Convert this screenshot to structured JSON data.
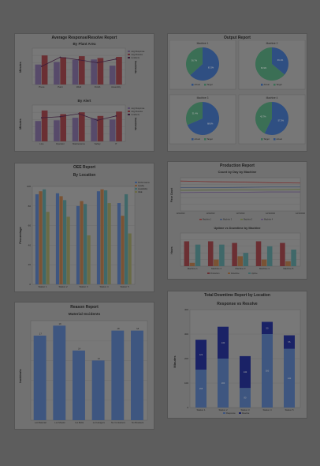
{
  "panels": {
    "avg_response": {
      "title": "Average Response/Resolve Report"
    },
    "output": {
      "title": "Output Report"
    },
    "oee": {
      "title": "OEE Report"
    },
    "production": {
      "title": "Production Report"
    },
    "reason": {
      "title": "Reason Report"
    },
    "downtime": {
      "title": "Total Downtime Report by Location"
    }
  },
  "colors": {
    "blue": "#3e4f6e",
    "maroon": "#6b2f33",
    "olive": "#5a6234",
    "purple": "#574a6a",
    "teal": "#3f6869",
    "orange": "#7a5334",
    "pie_blue": "#2f4f82",
    "pie_green": "#3b6f55",
    "navy": "#1a2266",
    "steel": "#3e5680"
  },
  "chart_data": [
    {
      "id": "by_plant_area",
      "type": "bar",
      "title": "By Plant Area",
      "categories": [
        "Press",
        "Paint",
        "Weld",
        "Finish",
        "Assembly"
      ],
      "ylabel": "Minutes",
      "y2label": "Incidents",
      "series": [
        {
          "name": "Avg Response",
          "values": [
            5.5,
            6.2,
            6.8,
            6.9,
            5.2
          ]
        },
        {
          "name": "Avg Resolve",
          "values": [
            8.0,
            7.5,
            7.8,
            7.3,
            7.6
          ]
        },
        {
          "name": "Incidents",
          "values": [
            5.0,
            7.5,
            6.8,
            6.0,
            7.0
          ]
        }
      ],
      "ylim": [
        0,
        10
      ]
    },
    {
      "id": "by_alert",
      "type": "bar",
      "title": "By Alert",
      "categories": [
        "Line",
        "Operator",
        "Maintenance",
        "Safety",
        "IT"
      ],
      "ylabel": "Minutes",
      "y2label": "Incidents",
      "series": [
        {
          "name": "Avg Response",
          "values": [
            5.6,
            5.8,
            6.5,
            6.3,
            6.0
          ]
        },
        {
          "name": "Avg Resolve",
          "values": [
            8.5,
            7.5,
            8.0,
            7.0,
            8.2
          ]
        },
        {
          "name": "Incidents",
          "values": [
            6.5,
            6.8,
            7.6,
            5.8,
            7.0
          ]
        }
      ],
      "ylim": [
        0,
        10
      ]
    },
    {
      "id": "machine_pies",
      "type": "pie",
      "items": [
        {
          "title": "Machine 1",
          "slices": [
            {
              "name": "Actual",
              "value": 63.3
            },
            {
              "name": "Target",
              "value": 36.7
            }
          ],
          "legend": [
            "Actual",
            "Target"
          ]
        },
        {
          "title": "Machine 2",
          "slices": [
            {
              "name": "Actual",
              "value": 36.1
            },
            {
              "name": "Target",
              "value": 63.9
            }
          ],
          "legend": [
            "Actual",
            "Target"
          ]
        },
        {
          "title": "Machine 3",
          "slices": [
            {
              "name": "Actual",
              "value": 68.6
            },
            {
              "name": "Target",
              "value": 31.4
            }
          ],
          "legend": [
            "Actual",
            "Target"
          ]
        },
        {
          "title": "Machine 4",
          "slices": [
            {
              "name": "Actual",
              "value": 57.3
            },
            {
              "name": "Target",
              "value": 42.7
            }
          ],
          "legend": [
            "Target",
            "Actual"
          ]
        }
      ]
    },
    {
      "id": "oee_by_location",
      "type": "bar",
      "title": "By Location",
      "categories": [
        "Station 1",
        "Station 2",
        "Station 3",
        "Station 4",
        "Station 5"
      ],
      "ylabel": "Percentage",
      "ylim": [
        0,
        100
      ],
      "yticks": [
        "0",
        "20",
        "40",
        "60",
        "80",
        "100"
      ],
      "series": [
        {
          "name": "Performance",
          "values": [
            92,
            93,
            80,
            95,
            83
          ]
        },
        {
          "name": "Quality",
          "values": [
            95,
            90,
            85,
            97,
            70
          ]
        },
        {
          "name": "Availability",
          "values": [
            97,
            86,
            82,
            96,
            92
          ]
        },
        {
          "name": "OEE",
          "values": [
            74,
            69,
            50,
            83,
            52
          ]
        }
      ]
    },
    {
      "id": "count_by_day",
      "type": "line",
      "title": "Count by Day by Machine",
      "ylabel": "Piece Count",
      "x": [
        "12/1/2010",
        "12/4/2010",
        "12/7/2010",
        "12/10/2010",
        "12/13/2010"
      ],
      "series": [
        {
          "name": "Machine 1",
          "values": [
            90,
            88,
            87,
            85,
            84
          ]
        },
        {
          "name": "Machine 2",
          "values": [
            70,
            70,
            71,
            72,
            72
          ]
        },
        {
          "name": "Machine 3",
          "values": [
            62,
            63,
            64,
            64,
            65
          ]
        },
        {
          "name": "Machine 4",
          "values": [
            55,
            56,
            56,
            57,
            57
          ]
        }
      ],
      "legend": [
        "Machine 1",
        "Machine 2",
        "Machine 3",
        "Machine 4"
      ]
    },
    {
      "id": "uptime_vs_downtime",
      "type": "bar",
      "title": "Uptime vs Downtime by Machine",
      "ylabel": "Hours",
      "categories": [
        "Machine 1",
        "Machine 2",
        "Machine 3",
        "Machine 4",
        "Machine 5"
      ],
      "series": [
        {
          "name": "Production",
          "values": [
            7.5,
            7.5,
            7.0,
            7.5,
            7.0
          ]
        },
        {
          "name": "Downtime",
          "values": [
            1.0,
            2.0,
            3.0,
            2.0,
            1.5
          ]
        },
        {
          "name": "Uptime",
          "values": [
            6.5,
            6.5,
            4.0,
            6.0,
            5.0
          ]
        }
      ],
      "legend": [
        "Production",
        "Downtime",
        "Uptime"
      ]
    },
    {
      "id": "material_incidents",
      "type": "bar",
      "title": "Material Incidents",
      "ylabel": "Incidents",
      "categories": [
        "Lot Material",
        "Lot Sheets",
        "Lot Bolts",
        "Lot Hangers",
        "No Containers",
        "No Brackets"
      ],
      "values": [
        17,
        19,
        14,
        12,
        18,
        18
      ],
      "ylim": [
        0,
        20
      ]
    },
    {
      "id": "response_vs_resolve",
      "type": "bar",
      "title": "Response vs Resolve",
      "ylabel": "Minutes",
      "categories": [
        "Station 1",
        "Station 2",
        "Station 3",
        "Station 4",
        "Station 5"
      ],
      "yticks": [
        "0",
        "100",
        "200",
        "300",
        "400"
      ],
      "series": [
        {
          "name": "Response",
          "values": [
            155,
            200,
            80,
            300,
            240
          ]
        },
        {
          "name": "Resolve",
          "values": [
            122,
            130,
            130,
            50,
            55
          ]
        }
      ],
      "bar_labels": {
        "Response": [
          "155",
          "200",
          "80",
          "300",
          "240"
        ],
        "Resolve": [
          "122",
          "130",
          "130",
          "50",
          "55"
        ]
      },
      "ylim": [
        0,
        400
      ],
      "legend": [
        "Response",
        "Resolve"
      ]
    }
  ]
}
